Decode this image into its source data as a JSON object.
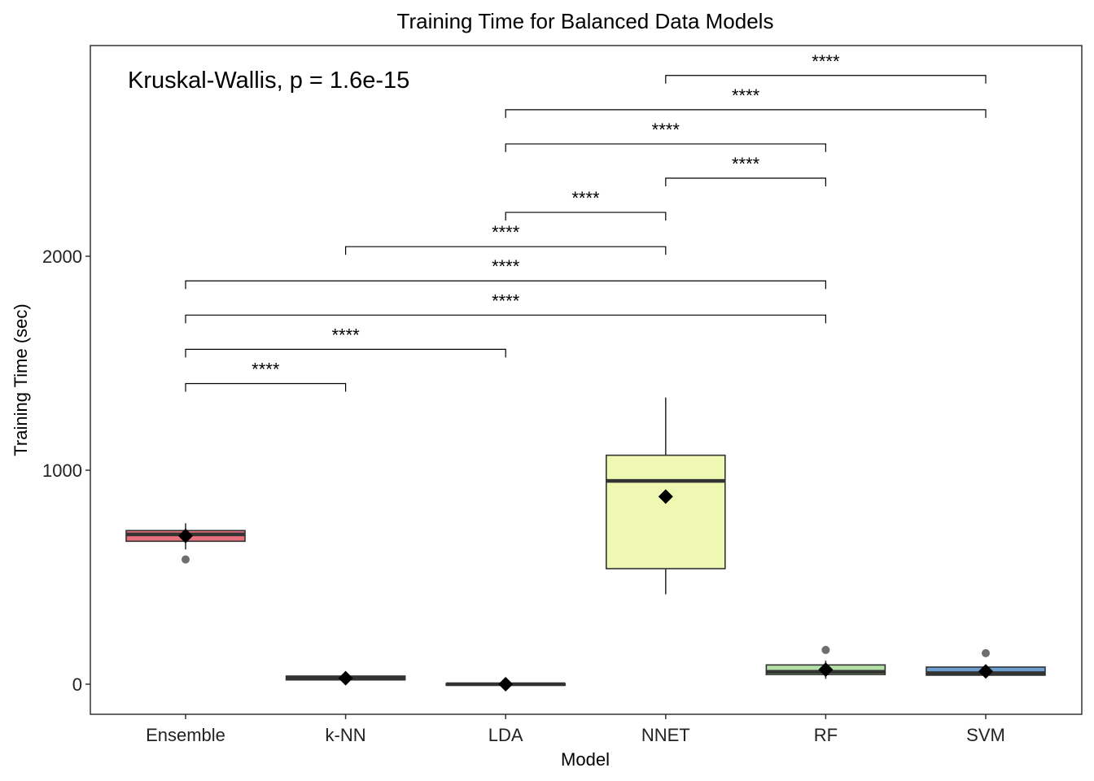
{
  "chart_data": {
    "type": "box",
    "title": "Training Time for Balanced Data Models",
    "xlabel": "Model",
    "ylabel": "Training Time (sec)",
    "ylim": [
      -135,
      2980
    ],
    "yticks": [
      0,
      1000,
      2000
    ],
    "grid": false,
    "legend": "none",
    "annotation": "Kruskal-Wallis, p = 1.6e-15",
    "categories": [
      "Ensemble",
      "k-NN",
      "LDA",
      "NNET",
      "RF",
      "SVM"
    ],
    "boxes": [
      {
        "category": "Ensemble",
        "q1": 668,
        "median": 700,
        "q3": 718,
        "whisker_low": 630,
        "whisker_high": 752,
        "mean": 693,
        "outliers": [
          583
        ],
        "color": "#e8707c"
      },
      {
        "category": "k-NN",
        "q1": 20,
        "median": 30,
        "q3": 38,
        "whisker_low": 15,
        "whisker_high": 42,
        "mean": 28,
        "outliers": [],
        "color": "#e8707c"
      },
      {
        "category": "LDA",
        "q1": -5,
        "median": 0,
        "q3": 3,
        "whisker_low": -7,
        "whisker_high": 5,
        "mean": 0,
        "outliers": [],
        "color": "#d97a3a"
      },
      {
        "category": "NNET",
        "q1": 540,
        "median": 950,
        "q3": 1070,
        "whisker_low": 420,
        "whisker_high": 1340,
        "mean": 877,
        "outliers": [],
        "color": "#eef8b2"
      },
      {
        "category": "RF",
        "q1": 45,
        "median": 58,
        "q3": 90,
        "whisker_low": 25,
        "whisker_high": 110,
        "mean": 68,
        "outliers": [
          160
        ],
        "color": "#b3e0a6"
      },
      {
        "category": "SVM",
        "q1": 42,
        "median": 52,
        "q3": 80,
        "whisker_low": 38,
        "whisker_high": 88,
        "mean": 60,
        "outliers": [
          145
        ],
        "color": "#6a9fcf"
      }
    ],
    "comparisons": [
      {
        "group1": "Ensemble",
        "group2": "k-NN",
        "label": "****",
        "y": 1405
      },
      {
        "group1": "Ensemble",
        "group2": "LDA",
        "label": "****",
        "y": 1565
      },
      {
        "group1": "Ensemble",
        "group2": "RF",
        "label": "****",
        "y": 1725
      },
      {
        "group1": "Ensemble",
        "group2": "RF",
        "label": "****",
        "y": 1885
      },
      {
        "group1": "k-NN",
        "group2": "NNET",
        "label": "****",
        "y": 2045
      },
      {
        "group1": "LDA",
        "group2": "NNET",
        "label": "****",
        "y": 2205
      },
      {
        "group1": "NNET",
        "group2": "RF",
        "label": "****",
        "y": 2365
      },
      {
        "group1": "LDA",
        "group2": "RF",
        "label": "****",
        "y": 2525
      },
      {
        "group1": "LDA",
        "group2": "SVM",
        "label": "****",
        "y": 2685
      },
      {
        "group1": "NNET",
        "group2": "SVM",
        "label": "****",
        "y": 2845
      }
    ]
  }
}
